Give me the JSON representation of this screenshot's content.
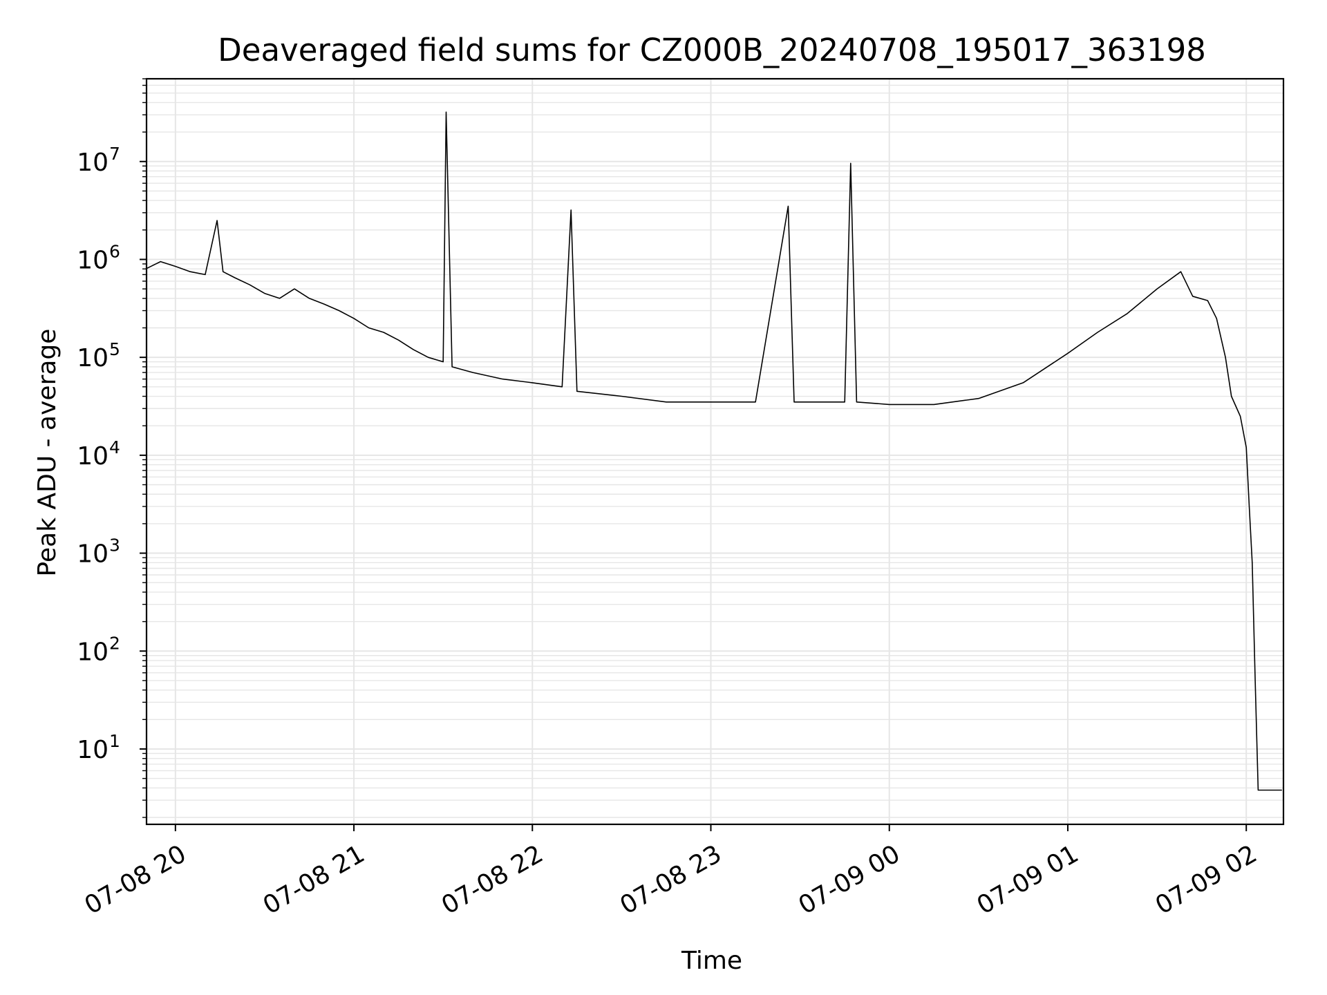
{
  "chart_data": {
    "type": "line",
    "title": "Deaveraged field sums for CZ000B_20240708_195017_363198",
    "xlabel": "Time",
    "ylabel": "Peak ADU - average",
    "yscale": "log",
    "ylim": [
      1.7,
      70000000
    ],
    "xlim": [
      "07-08 19:50:17",
      "07-09 02:12:30"
    ],
    "grid": true,
    "grid_color": "#e6e6e6",
    "line_color": "#000000",
    "x_ticks": [
      {
        "value": "07-08 20:00",
        "label": "07-08 20"
      },
      {
        "value": "07-08 21:00",
        "label": "07-08 21"
      },
      {
        "value": "07-08 22:00",
        "label": "07-08 22"
      },
      {
        "value": "07-08 23:00",
        "label": "07-08 23"
      },
      {
        "value": "07-09 00:00",
        "label": "07-09 00"
      },
      {
        "value": "07-09 01:00",
        "label": "07-09 01"
      },
      {
        "value": "07-09 02:00",
        "label": "07-09 02"
      }
    ],
    "y_ticks": [
      {
        "value": 10,
        "base": "10",
        "exp": "1"
      },
      {
        "value": 100,
        "base": "10",
        "exp": "2"
      },
      {
        "value": 1000,
        "base": "10",
        "exp": "3"
      },
      {
        "value": 10000,
        "base": "10",
        "exp": "4"
      },
      {
        "value": 100000,
        "base": "10",
        "exp": "5"
      },
      {
        "value": 1000000,
        "base": "10",
        "exp": "6"
      },
      {
        "value": 10000000,
        "base": "10",
        "exp": "7"
      }
    ],
    "series": [
      {
        "points": [
          [
            "07-08 19:50",
            800000
          ],
          [
            "07-08 19:55",
            950000
          ],
          [
            "07-08 20:00",
            850000
          ],
          [
            "07-08 20:05",
            750000
          ],
          [
            "07-08 20:10",
            700000
          ],
          [
            "07-08 20:14",
            2500000
          ],
          [
            "07-08 20:16",
            750000
          ],
          [
            "07-08 20:20",
            650000
          ],
          [
            "07-08 20:25",
            550000
          ],
          [
            "07-08 20:30",
            450000
          ],
          [
            "07-08 20:35",
            400000
          ],
          [
            "07-08 20:40",
            500000
          ],
          [
            "07-08 20:45",
            400000
          ],
          [
            "07-08 20:50",
            350000
          ],
          [
            "07-08 20:55",
            300000
          ],
          [
            "07-08 21:00",
            250000
          ],
          [
            "07-08 21:05",
            200000
          ],
          [
            "07-08 21:10",
            180000
          ],
          [
            "07-08 21:15",
            150000
          ],
          [
            "07-08 21:20",
            120000
          ],
          [
            "07-08 21:25",
            100000
          ],
          [
            "07-08 21:30",
            90000
          ],
          [
            "07-08 21:31",
            32000000
          ],
          [
            "07-08 21:33",
            80000
          ],
          [
            "07-08 21:40",
            70000
          ],
          [
            "07-08 21:50",
            60000
          ],
          [
            "07-08 22:00",
            55000
          ],
          [
            "07-08 22:10",
            50000
          ],
          [
            "07-08 22:13",
            3200000
          ],
          [
            "07-08 22:15",
            45000
          ],
          [
            "07-08 22:30",
            40000
          ],
          [
            "07-08 22:45",
            35000
          ],
          [
            "07-08 23:00",
            35000
          ],
          [
            "07-08 23:15",
            35000
          ],
          [
            "07-08 23:26",
            3500000
          ],
          [
            "07-08 23:28",
            35000
          ],
          [
            "07-08 23:45",
            35000
          ],
          [
            "07-08 23:47",
            9600000
          ],
          [
            "07-08 23:49",
            35000
          ],
          [
            "07-09 00:00",
            33000
          ],
          [
            "07-09 00:15",
            33000
          ],
          [
            "07-09 00:30",
            38000
          ],
          [
            "07-09 00:45",
            55000
          ],
          [
            "07-09 01:00",
            110000
          ],
          [
            "07-09 01:10",
            180000
          ],
          [
            "07-09 01:20",
            280000
          ],
          [
            "07-09 01:30",
            500000
          ],
          [
            "07-09 01:38",
            750000
          ],
          [
            "07-09 01:42",
            420000
          ],
          [
            "07-09 01:47",
            380000
          ],
          [
            "07-09 01:50",
            250000
          ],
          [
            "07-09 01:53",
            100000
          ],
          [
            "07-09 01:55",
            40000
          ],
          [
            "07-09 01:58",
            25000
          ],
          [
            "07-09 02:00",
            12000
          ],
          [
            "07-09 02:01",
            3000
          ],
          [
            "07-09 02:02",
            800
          ],
          [
            "07-09 02:03",
            50
          ],
          [
            "07-09 02:04",
            3.8
          ],
          [
            "07-09 02:12",
            3.8
          ]
        ]
      }
    ]
  }
}
